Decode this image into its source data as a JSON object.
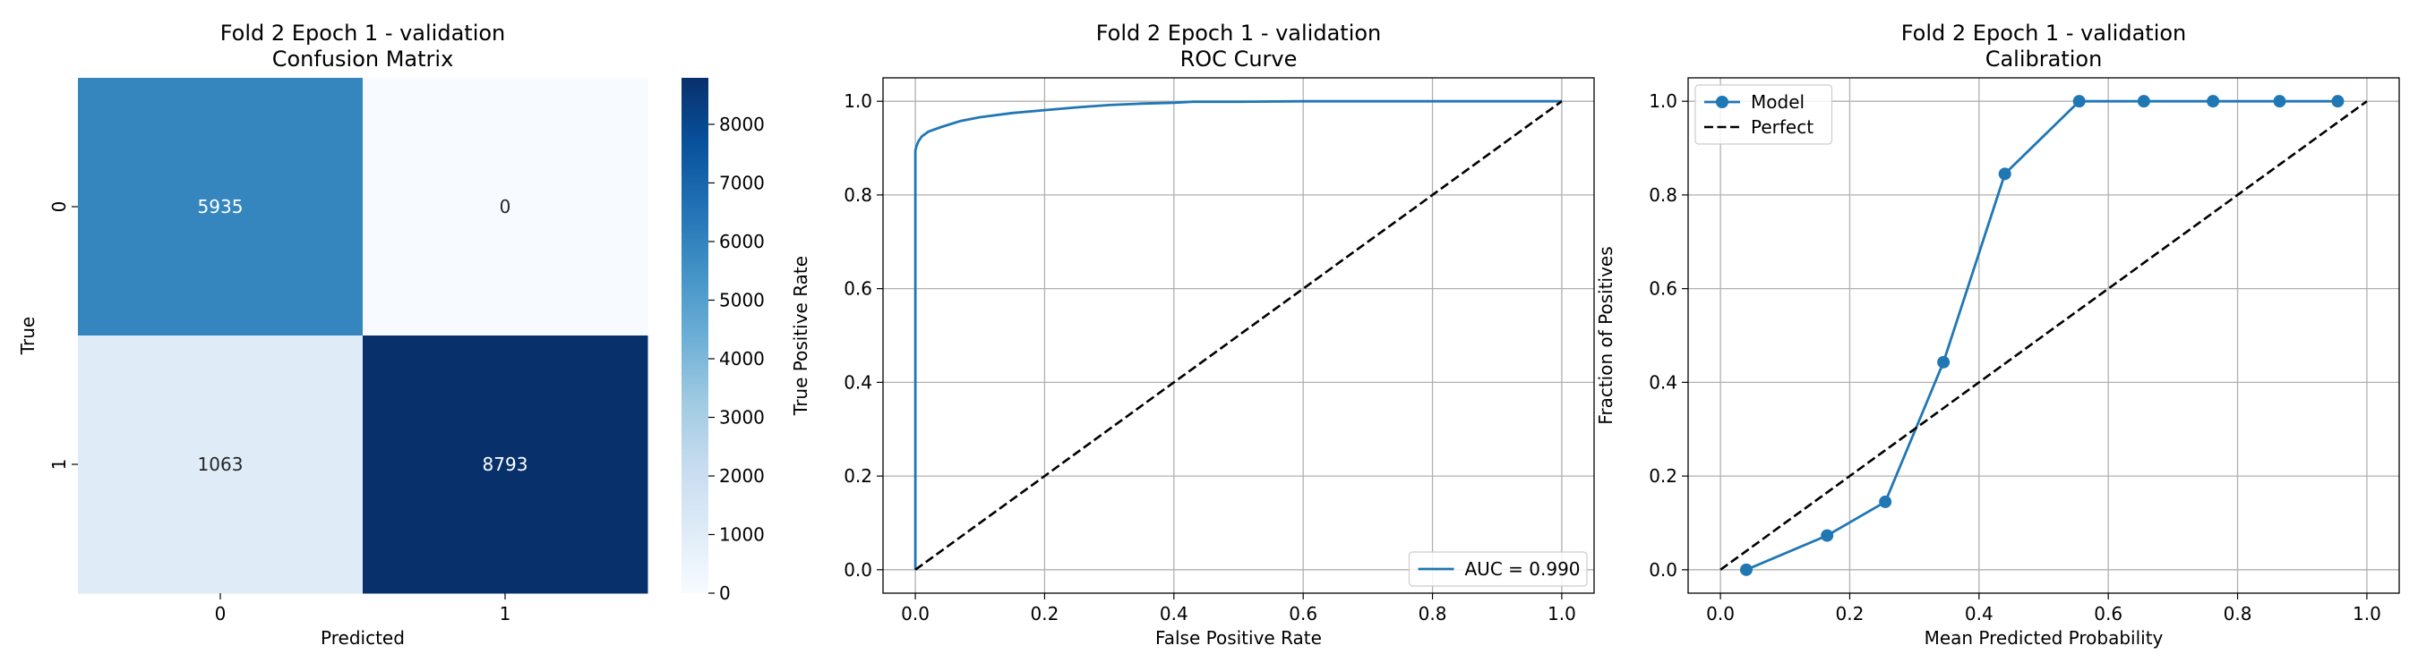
{
  "chart_data": [
    {
      "type": "heatmap",
      "title": [
        "Fold 2 Epoch 1 - validation",
        "Confusion Matrix"
      ],
      "xlabel": "Predicted",
      "ylabel": "True",
      "x_categories": [
        "0",
        "1"
      ],
      "y_categories": [
        "0",
        "1"
      ],
      "values": [
        [
          5935,
          0
        ],
        [
          1063,
          8793
        ]
      ],
      "colorbar": {
        "min": 0,
        "max": 8793,
        "ticks": [
          0,
          1000,
          2000,
          3000,
          4000,
          5000,
          6000,
          7000,
          8000
        ],
        "colormap": "Blues"
      }
    },
    {
      "type": "line",
      "title": [
        "Fold 2 Epoch 1 - validation",
        "ROC Curve"
      ],
      "xlabel": "False Positive Rate",
      "ylabel": "True Positive Rate",
      "xlim": [
        -0.05,
        1.05
      ],
      "ylim": [
        -0.05,
        1.05
      ],
      "xticks": [
        0.0,
        0.2,
        0.4,
        0.6,
        0.8,
        1.0
      ],
      "yticks": [
        0.0,
        0.2,
        0.4,
        0.6,
        0.8,
        1.0
      ],
      "grid": true,
      "legend": "lower-right",
      "series": [
        {
          "name": "AUC = 0.990",
          "color": "#1f77b4",
          "style": "solid",
          "x": [
            0.0,
            0.0,
            0.002,
            0.005,
            0.01,
            0.02,
            0.04,
            0.07,
            0.1,
            0.15,
            0.2,
            0.25,
            0.3,
            0.35,
            0.4,
            0.43,
            0.5,
            0.6,
            0.7,
            0.8,
            0.9,
            1.0
          ],
          "y": [
            0.0,
            0.895,
            0.905,
            0.915,
            0.925,
            0.935,
            0.945,
            0.958,
            0.966,
            0.975,
            0.981,
            0.987,
            0.992,
            0.995,
            0.997,
            0.999,
            0.999,
            1.0,
            1.0,
            1.0,
            1.0,
            1.0
          ]
        },
        {
          "name": "",
          "color": "#000000",
          "style": "dashed",
          "x": [
            0.0,
            1.0
          ],
          "y": [
            0.0,
            1.0
          ]
        }
      ]
    },
    {
      "type": "line",
      "title": [
        "Fold 2 Epoch 1 - validation",
        "Calibration"
      ],
      "xlabel": "Mean Predicted Probability",
      "ylabel": "Fraction of Positives",
      "xlim": [
        -0.05,
        1.05
      ],
      "ylim": [
        -0.05,
        1.05
      ],
      "xticks": [
        0.0,
        0.2,
        0.4,
        0.6,
        0.8,
        1.0
      ],
      "yticks": [
        0.0,
        0.2,
        0.4,
        0.6,
        0.8,
        1.0
      ],
      "grid": true,
      "legend": "upper-left",
      "series": [
        {
          "name": "Model",
          "color": "#1f77b4",
          "style": "solid",
          "markers": true,
          "x": [
            0.04,
            0.165,
            0.255,
            0.345,
            0.44,
            0.555,
            0.655,
            0.762,
            0.865,
            0.955
          ],
          "y": [
            0.0,
            0.073,
            0.145,
            0.443,
            0.845,
            1.0,
            1.0,
            1.0,
            1.0,
            1.0
          ]
        },
        {
          "name": "Perfect",
          "color": "#000000",
          "style": "dashed",
          "x": [
            0.0,
            1.0
          ],
          "y": [
            0.0,
            1.0
          ]
        }
      ]
    }
  ]
}
